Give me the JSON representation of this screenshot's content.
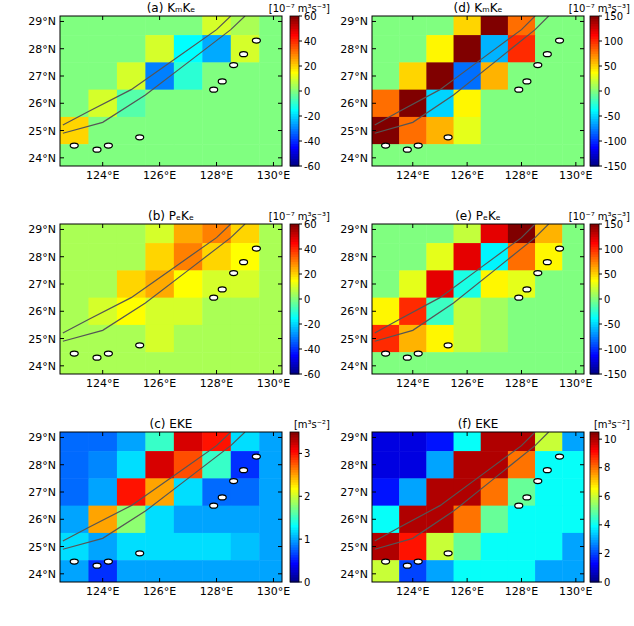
{
  "chart_data": [
    {
      "type": "heatmap",
      "title": "(a) KₘKₑ",
      "x": [
        123,
        124,
        125,
        126,
        127,
        128,
        129,
        130
      ],
      "y": [
        29,
        28,
        27,
        26,
        25,
        24
      ],
      "cells": [
        [
          0,
          0,
          0,
          0,
          0,
          10,
          5,
          0
        ],
        [
          0,
          0,
          0,
          10,
          -15,
          -25,
          10,
          0
        ],
        [
          0,
          0,
          10,
          -30,
          -10,
          0,
          0,
          0
        ],
        [
          0,
          10,
          -5,
          0,
          0,
          0,
          0,
          0
        ],
        [
          20,
          0,
          0,
          0,
          0,
          0,
          0,
          0
        ],
        [
          0,
          0,
          0,
          0,
          0,
          0,
          0,
          0
        ]
      ],
      "xlim": [
        122.5,
        130.3
      ],
      "ylim": [
        23.7,
        29.2
      ],
      "xticks": [
        {
          "value": 124,
          "label": "124°E"
        },
        {
          "value": 126,
          "label": "126°E"
        },
        {
          "value": 128,
          "label": "128°E"
        },
        {
          "value": 130,
          "label": "130°E"
        }
      ],
      "yticks": [
        {
          "value": 24,
          "label": "24°N"
        },
        {
          "value": 25,
          "label": "25°N"
        },
        {
          "value": 26,
          "label": "26°N"
        },
        {
          "value": 27,
          "label": "27°N"
        },
        {
          "value": 28,
          "label": "28°N"
        },
        {
          "value": 29,
          "label": "29°N"
        }
      ],
      "colorbar": {
        "label": "[10⁻⁷ m³s⁻³]",
        "range": [
          -60,
          60
        ],
        "ticks": [
          -60,
          -40,
          -20,
          0,
          20,
          40,
          60
        ]
      }
    },
    {
      "type": "heatmap",
      "title": "(b) PₑKₑ",
      "x": [
        123,
        124,
        125,
        126,
        127,
        128,
        129,
        130
      ],
      "y": [
        29,
        28,
        27,
        26,
        25,
        24
      ],
      "cells": [
        [
          5,
          5,
          5,
          10,
          25,
          30,
          20,
          5
        ],
        [
          5,
          5,
          5,
          20,
          30,
          20,
          15,
          5
        ],
        [
          5,
          5,
          20,
          25,
          15,
          10,
          10,
          5
        ],
        [
          5,
          10,
          15,
          10,
          10,
          5,
          5,
          5
        ],
        [
          5,
          5,
          5,
          10,
          5,
          5,
          5,
          5
        ],
        [
          5,
          5,
          5,
          5,
          5,
          5,
          5,
          5
        ]
      ],
      "xlim": [
        122.5,
        130.3
      ],
      "ylim": [
        23.7,
        29.2
      ],
      "xticks": [
        {
          "value": 124,
          "label": "124°E"
        },
        {
          "value": 126,
          "label": "126°E"
        },
        {
          "value": 128,
          "label": "128°E"
        },
        {
          "value": 130,
          "label": "130°E"
        }
      ],
      "yticks": [
        {
          "value": 24,
          "label": "24°N"
        },
        {
          "value": 25,
          "label": "25°N"
        },
        {
          "value": 26,
          "label": "26°N"
        },
        {
          "value": 27,
          "label": "27°N"
        },
        {
          "value": 28,
          "label": "28°N"
        },
        {
          "value": 29,
          "label": "29°N"
        }
      ],
      "colorbar": {
        "label": "[10⁻⁷ m³s⁻³]",
        "range": [
          -60,
          60
        ],
        "ticks": [
          -60,
          -40,
          -20,
          0,
          20,
          40,
          60
        ]
      }
    },
    {
      "type": "heatmap",
      "title": "(c) EKE",
      "x": [
        123,
        124,
        125,
        126,
        127,
        128,
        129,
        130
      ],
      "y": [
        29,
        28,
        27,
        26,
        25,
        24
      ],
      "cells": [
        [
          0.8,
          0.8,
          1.0,
          1.5,
          3.2,
          3.0,
          1.2,
          1.0
        ],
        [
          0.8,
          0.9,
          1.2,
          3.2,
          2.8,
          1.5,
          0.6,
          1.0
        ],
        [
          0.8,
          1.0,
          3.0,
          2.5,
          1.2,
          0.8,
          0.8,
          1.0
        ],
        [
          1.0,
          2.5,
          1.8,
          1.2,
          1.0,
          1.0,
          1.0,
          1.0
        ],
        [
          1.2,
          1.0,
          1.2,
          1.2,
          1.2,
          1.2,
          1.1,
          1.0
        ],
        [
          1.0,
          0.6,
          1.0,
          1.0,
          1.0,
          1.0,
          1.0,
          1.0
        ]
      ],
      "xlim": [
        122.5,
        130.3
      ],
      "ylim": [
        23.7,
        29.2
      ],
      "xticks": [
        {
          "value": 124,
          "label": "124°E"
        },
        {
          "value": 126,
          "label": "126°E"
        },
        {
          "value": 128,
          "label": "128°E"
        },
        {
          "value": 130,
          "label": "130°E"
        }
      ],
      "yticks": [
        {
          "value": 24,
          "label": "24°N"
        },
        {
          "value": 25,
          "label": "25°N"
        },
        {
          "value": 26,
          "label": "26°N"
        },
        {
          "value": 27,
          "label": "27°N"
        },
        {
          "value": 28,
          "label": "28°N"
        },
        {
          "value": 29,
          "label": "29°N"
        }
      ],
      "colorbar": {
        "label": "[m³s⁻²]",
        "range": [
          0,
          3.5
        ],
        "ticks": [
          0,
          1,
          2,
          3
        ]
      }
    },
    {
      "type": "heatmap",
      "title": "(d) KₘKₑ",
      "x": [
        123,
        124,
        125,
        126,
        127,
        128,
        129,
        130
      ],
      "y": [
        29,
        28,
        27,
        26,
        25,
        24
      ],
      "cells": [
        [
          0,
          0,
          0,
          50,
          150,
          80,
          0,
          0
        ],
        [
          0,
          0,
          40,
          150,
          -60,
          100,
          0,
          0
        ],
        [
          0,
          50,
          150,
          -80,
          60,
          0,
          0,
          0
        ],
        [
          80,
          150,
          -50,
          40,
          0,
          0,
          0,
          0
        ],
        [
          150,
          80,
          60,
          30,
          0,
          0,
          0,
          0
        ],
        [
          0,
          0,
          0,
          0,
          0,
          0,
          0,
          0
        ]
      ],
      "xlim": [
        122.5,
        130.3
      ],
      "ylim": [
        23.7,
        29.2
      ],
      "xticks": [
        {
          "value": 124,
          "label": "124°E"
        },
        {
          "value": 126,
          "label": "126°E"
        },
        {
          "value": 128,
          "label": "128°E"
        },
        {
          "value": 130,
          "label": "130°E"
        }
      ],
      "yticks": [
        {
          "value": 24,
          "label": "24°N"
        },
        {
          "value": 25,
          "label": "25°N"
        },
        {
          "value": 26,
          "label": "26°N"
        },
        {
          "value": 27,
          "label": "27°N"
        },
        {
          "value": 28,
          "label": "28°N"
        },
        {
          "value": 29,
          "label": "29°N"
        }
      ],
      "colorbar": {
        "label": "[10⁻⁷ m³s⁻³]",
        "range": [
          -150,
          150
        ],
        "ticks": [
          -150,
          -100,
          -50,
          0,
          50,
          100,
          150
        ]
      }
    },
    {
      "type": "heatmap",
      "title": "(e) PₑKₑ",
      "x": [
        123,
        124,
        125,
        126,
        127,
        128,
        129,
        130
      ],
      "y": [
        29,
        28,
        27,
        26,
        25,
        24
      ],
      "cells": [
        [
          0,
          0,
          0,
          20,
          120,
          150,
          60,
          0
        ],
        [
          0,
          0,
          30,
          120,
          -40,
          80,
          40,
          0
        ],
        [
          0,
          30,
          120,
          -30,
          40,
          30,
          0,
          0
        ],
        [
          40,
          100,
          -20,
          20,
          10,
          0,
          0,
          0
        ],
        [
          100,
          60,
          40,
          20,
          10,
          0,
          0,
          0
        ],
        [
          0,
          0,
          0,
          0,
          0,
          0,
          0,
          0
        ]
      ],
      "xlim": [
        122.5,
        130.3
      ],
      "ylim": [
        23.7,
        29.2
      ],
      "xticks": [
        {
          "value": 124,
          "label": "124°E"
        },
        {
          "value": 126,
          "label": "126°E"
        },
        {
          "value": 128,
          "label": "128°E"
        },
        {
          "value": 130,
          "label": "130°E"
        }
      ],
      "yticks": [
        {
          "value": 24,
          "label": "24°N"
        },
        {
          "value": 25,
          "label": "25°N"
        },
        {
          "value": 26,
          "label": "26°N"
        },
        {
          "value": 27,
          "label": "27°N"
        },
        {
          "value": 28,
          "label": "28°N"
        },
        {
          "value": 29,
          "label": "29°N"
        }
      ],
      "colorbar": {
        "label": "[10⁻⁷ m³s⁻³]",
        "range": [
          -150,
          150
        ],
        "ticks": [
          -150,
          -100,
          -50,
          0,
          50,
          100,
          150
        ]
      }
    },
    {
      "type": "heatmap",
      "title": "(f) EKE",
      "x": [
        123,
        124,
        125,
        126,
        127,
        128,
        129,
        130
      ],
      "y": [
        29,
        28,
        27,
        26,
        25,
        24
      ],
      "cells": [
        [
          1,
          1,
          1.5,
          4,
          10,
          10,
          6,
          3
        ],
        [
          1,
          1,
          3,
          10,
          10,
          8,
          4,
          4
        ],
        [
          1.5,
          3,
          10,
          10,
          8,
          5,
          4,
          4
        ],
        [
          4,
          10,
          10,
          8,
          5,
          4,
          4,
          4
        ],
        [
          10,
          9,
          6,
          5,
          4,
          4,
          4,
          3
        ],
        [
          6,
          2,
          3,
          4,
          4,
          4,
          3,
          3
        ]
      ],
      "xlim": [
        122.5,
        130.3
      ],
      "ylim": [
        23.7,
        29.2
      ],
      "xticks": [
        {
          "value": 124,
          "label": "124°E"
        },
        {
          "value": 126,
          "label": "126°E"
        },
        {
          "value": 128,
          "label": "128°E"
        },
        {
          "value": 130,
          "label": "130°E"
        }
      ],
      "yticks": [
        {
          "value": 24,
          "label": "24°N"
        },
        {
          "value": 25,
          "label": "25°N"
        },
        {
          "value": 26,
          "label": "26°N"
        },
        {
          "value": 27,
          "label": "27°N"
        },
        {
          "value": 28,
          "label": "28°N"
        },
        {
          "value": 29,
          "label": "29°N"
        }
      ],
      "colorbar": {
        "label": "[m³s⁻²]",
        "range": [
          0,
          10.5
        ],
        "ticks": [
          0,
          2,
          4,
          6,
          8,
          10
        ]
      }
    }
  ],
  "map": {
    "contours": [
      {
        "lon": [
          122.6,
          123.5,
          125,
          126.5,
          128,
          128.5
        ],
        "lat": [
          25.2,
          25.7,
          26.5,
          27.6,
          28.7,
          29.2
        ]
      },
      {
        "lon": [
          122.6,
          124,
          125.5,
          127,
          128.5,
          129
        ],
        "lat": [
          24.9,
          25.3,
          26.3,
          27.5,
          28.7,
          29.2
        ]
      }
    ],
    "islands": {
      "lon": [
        123.0,
        123.8,
        124.2,
        125.3,
        127.9,
        128.2,
        128.6,
        128.95,
        129.4
      ],
      "lat": [
        24.45,
        24.3,
        24.45,
        24.75,
        26.5,
        26.8,
        27.4,
        27.8,
        28.3
      ]
    }
  }
}
